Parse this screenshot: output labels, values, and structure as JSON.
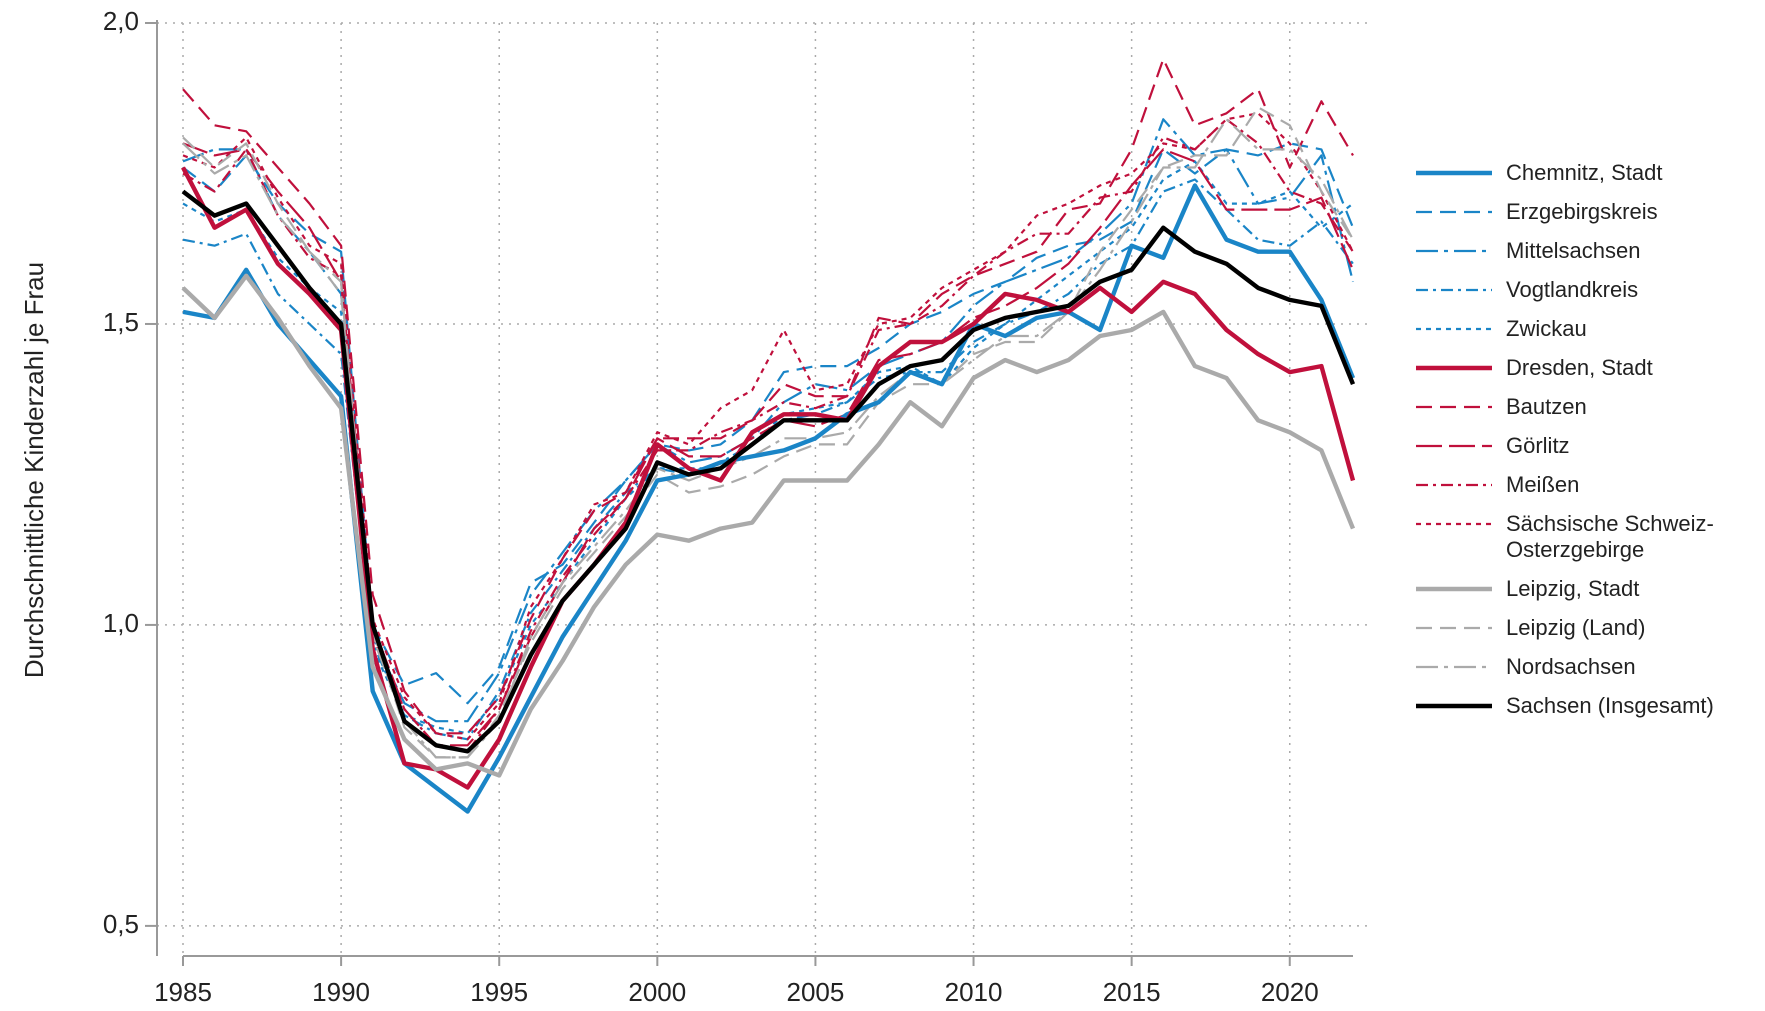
{
  "chart_data": {
    "type": "line",
    "y_label": "Durchschnittliche Kinderzahl je Frau",
    "x": [
      1985,
      1986,
      1987,
      1988,
      1989,
      1990,
      1991,
      1992,
      1993,
      1994,
      1995,
      1996,
      1997,
      1998,
      1999,
      2000,
      2001,
      2002,
      2003,
      2004,
      2005,
      2006,
      2007,
      2008,
      2009,
      2010,
      2011,
      2012,
      2013,
      2014,
      2015,
      2016,
      2017,
      2018,
      2019,
      2020,
      2021,
      2022
    ],
    "xlim": [
      1985,
      2022
    ],
    "xticks": [
      1985,
      1990,
      1995,
      2000,
      2005,
      2010,
      2015,
      2020
    ],
    "ylim": [
      0.45,
      2.0
    ],
    "yticks": [
      {
        "value": 0.5,
        "label": "0,5"
      },
      {
        "value": 1.0,
        "label": "1,0"
      },
      {
        "value": 1.5,
        "label": "1,5"
      },
      {
        "value": 2.0,
        "label": "2,0"
      }
    ],
    "grid": true,
    "legend": "right",
    "series": [
      {
        "name": "Chemnitz, Stadt",
        "color": "#1a85c7",
        "style": "solid",
        "width": 4,
        "values": [
          1.52,
          1.51,
          1.59,
          1.5,
          1.44,
          1.38,
          0.89,
          0.77,
          0.73,
          0.69,
          0.78,
          0.88,
          0.98,
          1.06,
          1.14,
          1.24,
          1.25,
          1.27,
          1.28,
          1.29,
          1.31,
          1.35,
          1.37,
          1.42,
          1.4,
          1.5,
          1.48,
          1.51,
          1.52,
          1.49,
          1.63,
          1.61,
          1.73,
          1.64,
          1.62,
          1.62,
          1.54,
          1.41
        ]
      },
      {
        "name": "Erzgebirgskreis",
        "color": "#1a85c7",
        "style": "dashed",
        "width": 2,
        "values": [
          1.76,
          1.72,
          1.78,
          1.7,
          1.65,
          1.62,
          1.0,
          0.9,
          0.92,
          0.87,
          0.93,
          1.07,
          1.1,
          1.17,
          1.24,
          1.3,
          1.29,
          1.3,
          1.34,
          1.42,
          1.43,
          1.43,
          1.46,
          1.5,
          1.52,
          1.55,
          1.57,
          1.61,
          1.63,
          1.64,
          1.67,
          1.79,
          1.75,
          1.79,
          1.78,
          1.8,
          1.79,
          1.66
        ]
      },
      {
        "name": "Mittelsachsen",
        "color": "#1a85c7",
        "style": "longdashdot",
        "width": 2,
        "values": [
          1.77,
          1.79,
          1.79,
          1.68,
          1.62,
          1.55,
          0.98,
          0.87,
          0.84,
          0.84,
          0.92,
          1.05,
          1.12,
          1.19,
          1.24,
          1.3,
          1.27,
          1.28,
          1.31,
          1.37,
          1.4,
          1.39,
          1.43,
          1.45,
          1.47,
          1.53,
          1.57,
          1.59,
          1.61,
          1.65,
          1.7,
          1.84,
          1.78,
          1.79,
          1.7,
          1.71,
          1.78,
          1.57
        ]
      },
      {
        "name": "Vogtlandkreis",
        "color": "#1a85c7",
        "style": "dashdot",
        "width": 2,
        "values": [
          1.64,
          1.63,
          1.65,
          1.55,
          1.5,
          1.45,
          0.97,
          0.85,
          0.82,
          0.81,
          0.89,
          1.02,
          1.09,
          1.16,
          1.22,
          1.26,
          1.25,
          1.27,
          1.3,
          1.34,
          1.35,
          1.37,
          1.41,
          1.42,
          1.42,
          1.47,
          1.5,
          1.52,
          1.55,
          1.6,
          1.63,
          1.72,
          1.74,
          1.69,
          1.64,
          1.63,
          1.67,
          1.6
        ]
      },
      {
        "name": "Zwickau",
        "color": "#1a85c7",
        "style": "dotted",
        "width": 2,
        "values": [
          1.7,
          1.67,
          1.69,
          1.61,
          1.56,
          1.52,
          0.96,
          0.85,
          0.83,
          0.82,
          0.88,
          1.0,
          1.07,
          1.14,
          1.21,
          1.26,
          1.26,
          1.26,
          1.3,
          1.35,
          1.36,
          1.37,
          1.42,
          1.43,
          1.4,
          1.46,
          1.5,
          1.54,
          1.58,
          1.62,
          1.66,
          1.74,
          1.77,
          1.7,
          1.7,
          1.72,
          1.66,
          1.7
        ]
      },
      {
        "name": "Dresden, Stadt",
        "color": "#c0103c",
        "style": "solid",
        "width": 4,
        "values": [
          1.76,
          1.66,
          1.69,
          1.6,
          1.55,
          1.49,
          0.96,
          0.77,
          0.76,
          0.73,
          0.81,
          0.93,
          1.04,
          1.1,
          1.17,
          1.3,
          1.26,
          1.24,
          1.32,
          1.35,
          1.35,
          1.34,
          1.43,
          1.47,
          1.47,
          1.5,
          1.55,
          1.54,
          1.52,
          1.56,
          1.52,
          1.57,
          1.55,
          1.49,
          1.45,
          1.42,
          1.43,
          1.24
        ]
      },
      {
        "name": "Bautzen",
        "color": "#c0103c",
        "style": "dashed",
        "width": 2,
        "values": [
          1.89,
          1.83,
          1.82,
          1.76,
          1.7,
          1.63,
          1.05,
          0.89,
          0.82,
          0.82,
          0.88,
          1.01,
          1.11,
          1.19,
          1.22,
          1.31,
          1.31,
          1.31,
          1.34,
          1.4,
          1.38,
          1.38,
          1.51,
          1.5,
          1.55,
          1.58,
          1.6,
          1.62,
          1.69,
          1.7,
          1.79,
          1.94,
          1.83,
          1.85,
          1.89,
          1.76,
          1.87,
          1.78
        ]
      },
      {
        "name": "Görlitz",
        "color": "#c0103c",
        "style": "longdash",
        "width": 2,
        "values": [
          1.8,
          1.78,
          1.79,
          1.72,
          1.66,
          1.57,
          1.0,
          0.86,
          0.8,
          0.8,
          0.86,
          0.98,
          1.07,
          1.16,
          1.21,
          1.31,
          1.28,
          1.28,
          1.31,
          1.34,
          1.33,
          1.35,
          1.44,
          1.45,
          1.47,
          1.51,
          1.53,
          1.56,
          1.6,
          1.66,
          1.73,
          1.79,
          1.77,
          1.69,
          1.69,
          1.69,
          1.71,
          1.59
        ]
      },
      {
        "name": "Meißen",
        "color": "#c0103c",
        "style": "dashdot",
        "width": 2,
        "values": [
          1.75,
          1.72,
          1.79,
          1.68,
          1.61,
          1.58,
          0.98,
          0.86,
          0.8,
          0.79,
          0.86,
          0.99,
          1.08,
          1.15,
          1.21,
          1.29,
          1.29,
          1.32,
          1.34,
          1.37,
          1.36,
          1.38,
          1.49,
          1.5,
          1.53,
          1.58,
          1.62,
          1.65,
          1.65,
          1.71,
          1.72,
          1.81,
          1.79,
          1.84,
          1.8,
          1.72,
          1.7,
          1.62
        ]
      },
      {
        "name": "Sächsische Schweiz-Osterzgebirge",
        "color": "#c0103c",
        "style": "dotted",
        "width": 2,
        "values": [
          1.78,
          1.76,
          1.81,
          1.71,
          1.63,
          1.6,
          1.01,
          0.88,
          0.82,
          0.81,
          0.87,
          1.03,
          1.11,
          1.2,
          1.22,
          1.32,
          1.3,
          1.36,
          1.39,
          1.49,
          1.39,
          1.4,
          1.5,
          1.51,
          1.56,
          1.59,
          1.62,
          1.68,
          1.7,
          1.73,
          1.75,
          1.8,
          1.79,
          1.84,
          1.85,
          1.8,
          1.72,
          1.62
        ]
      },
      {
        "name": "Leipzig, Stadt",
        "color": "#aaaaaa",
        "style": "solid",
        "width": 4,
        "values": [
          1.56,
          1.51,
          1.58,
          1.51,
          1.43,
          1.36,
          0.93,
          0.81,
          0.76,
          0.77,
          0.75,
          0.86,
          0.94,
          1.03,
          1.1,
          1.15,
          1.14,
          1.16,
          1.17,
          1.24,
          1.24,
          1.24,
          1.3,
          1.37,
          1.33,
          1.41,
          1.44,
          1.42,
          1.44,
          1.48,
          1.49,
          1.52,
          1.43,
          1.41,
          1.34,
          1.32,
          1.29,
          1.16
        ]
      },
      {
        "name": "Leipzig (Land)",
        "color": "#aaaaaa",
        "style": "dashed",
        "width": 2,
        "values": [
          1.81,
          1.76,
          1.8,
          1.7,
          1.62,
          1.55,
          0.99,
          0.83,
          0.78,
          0.78,
          0.85,
          0.97,
          1.06,
          1.12,
          1.18,
          1.25,
          1.22,
          1.23,
          1.25,
          1.28,
          1.3,
          1.3,
          1.37,
          1.4,
          1.4,
          1.45,
          1.47,
          1.47,
          1.52,
          1.62,
          1.69,
          1.76,
          1.78,
          1.78,
          1.86,
          1.83,
          1.72,
          1.64
        ]
      },
      {
        "name": "Nordsachsen",
        "color": "#aaaaaa",
        "style": "longdashdot",
        "width": 2,
        "values": [
          1.8,
          1.75,
          1.78,
          1.68,
          1.62,
          1.57,
          0.98,
          0.84,
          0.78,
          0.78,
          0.84,
          0.98,
          1.07,
          1.13,
          1.19,
          1.26,
          1.24,
          1.26,
          1.28,
          1.31,
          1.31,
          1.32,
          1.38,
          1.42,
          1.4,
          1.44,
          1.48,
          1.48,
          1.52,
          1.59,
          1.67,
          1.76,
          1.76,
          1.84,
          1.79,
          1.79,
          1.74,
          1.64
        ]
      },
      {
        "name": "Sachsen (Insgesamt)",
        "color": "#000000",
        "style": "solid",
        "width": 4,
        "values": [
          1.72,
          1.68,
          1.7,
          1.63,
          1.56,
          1.5,
          1.0,
          0.84,
          0.8,
          0.79,
          0.84,
          0.95,
          1.04,
          1.1,
          1.16,
          1.27,
          1.25,
          1.26,
          1.3,
          1.34,
          1.34,
          1.34,
          1.4,
          1.43,
          1.44,
          1.49,
          1.51,
          1.52,
          1.53,
          1.57,
          1.59,
          1.66,
          1.62,
          1.6,
          1.56,
          1.54,
          1.53,
          1.4
        ]
      }
    ]
  }
}
